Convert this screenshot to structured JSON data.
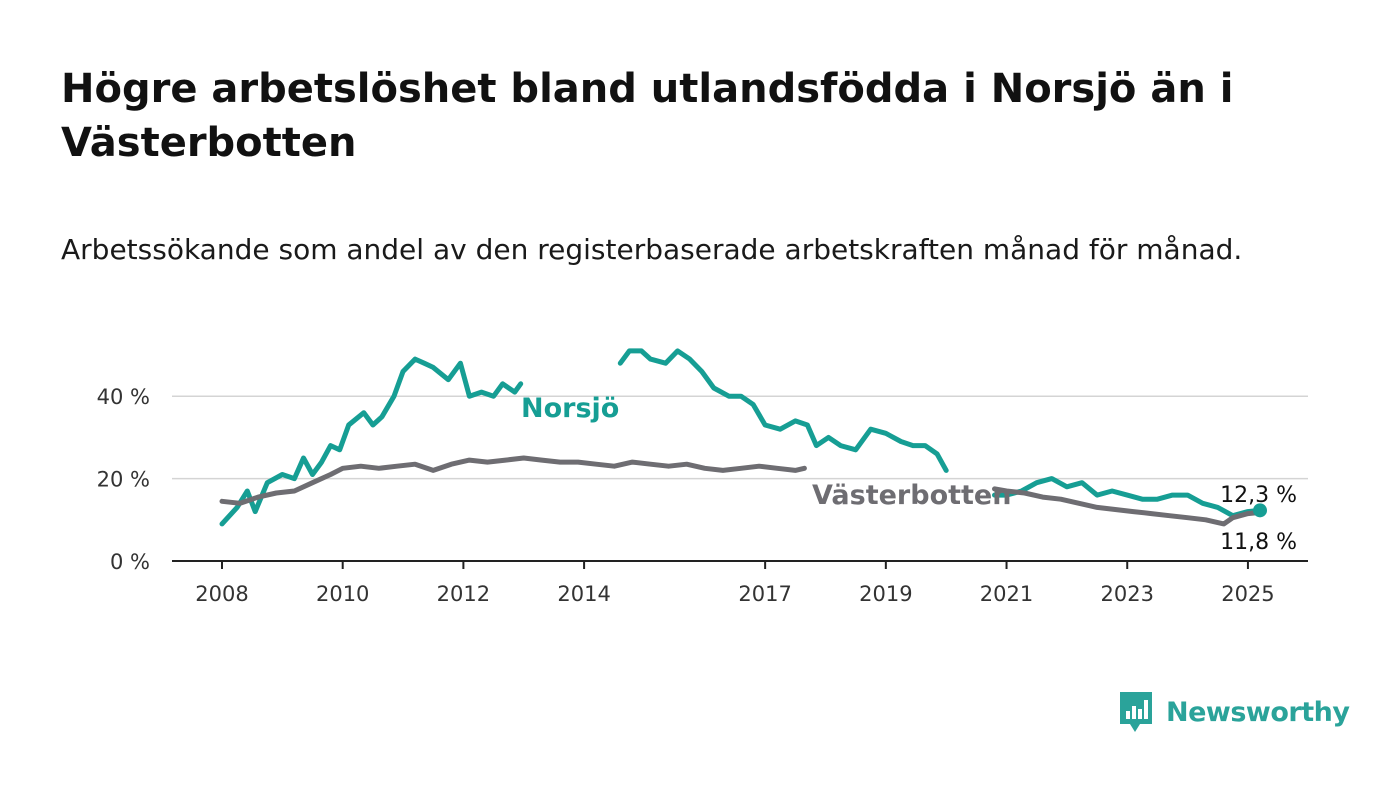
{
  "title": "Högre arbetslöshet bland utlandsfödda i Norsjö än i Västerbotten",
  "subtitle": "Arbetssökande som andel av den registerbaserade arbetskraften månad för månad.",
  "brand": {
    "name": "Newsworthy",
    "icon": "newsworthy-logo-icon",
    "color": "#2aa39a"
  },
  "chart_data": {
    "type": "line",
    "xlabel": "",
    "ylabel": "",
    "x_ticks": [
      "2008",
      "2010",
      "2012",
      "2014",
      "2017",
      "2019",
      "2021",
      "2023",
      "2025"
    ],
    "y_ticks": [
      "0 %",
      "20 %",
      "40 %"
    ],
    "xlim": [
      2008.0,
      2025.2
    ],
    "ylim": [
      0,
      50
    ],
    "grid": "horizontal",
    "series": [
      {
        "name": "Norsjö",
        "color": "#169e94",
        "end_label": "12,3 %",
        "points": [
          [
            2008.0,
            9
          ],
          [
            2008.25,
            13
          ],
          [
            2008.42,
            17
          ],
          [
            2008.55,
            12
          ],
          [
            2008.75,
            19
          ],
          [
            2009.0,
            21
          ],
          [
            2009.2,
            20
          ],
          [
            2009.35,
            25
          ],
          [
            2009.5,
            21
          ],
          [
            2009.65,
            24
          ],
          [
            2009.8,
            28
          ],
          [
            2009.95,
            27
          ],
          [
            2010.1,
            33
          ],
          [
            2010.35,
            36
          ],
          [
            2010.5,
            33
          ],
          [
            2010.65,
            35
          ],
          [
            2010.85,
            40
          ],
          [
            2011.0,
            46
          ],
          [
            2011.2,
            49
          ],
          [
            2011.35,
            48
          ],
          [
            2011.5,
            47
          ],
          [
            2011.75,
            44
          ],
          [
            2011.95,
            48
          ],
          [
            2012.1,
            40
          ],
          [
            2012.3,
            41
          ],
          [
            2012.5,
            40
          ],
          [
            2012.65,
            43
          ],
          [
            2012.85,
            41
          ],
          [
            2012.95,
            43
          ],
          [
            2014.6,
            48
          ],
          [
            2014.75,
            51
          ],
          [
            2014.95,
            51
          ],
          [
            2015.1,
            49
          ],
          [
            2015.35,
            48
          ],
          [
            2015.55,
            51
          ],
          [
            2015.75,
            49
          ],
          [
            2015.95,
            46
          ],
          [
            2016.15,
            42
          ],
          [
            2016.4,
            40
          ],
          [
            2016.6,
            40
          ],
          [
            2016.8,
            38
          ],
          [
            2017.0,
            33
          ],
          [
            2017.25,
            32
          ],
          [
            2017.5,
            34
          ],
          [
            2017.7,
            33
          ],
          [
            2017.85,
            28
          ],
          [
            2018.05,
            30
          ],
          [
            2018.25,
            28
          ],
          [
            2018.5,
            27
          ],
          [
            2018.75,
            32
          ],
          [
            2019.0,
            31
          ],
          [
            2019.25,
            29
          ],
          [
            2019.45,
            28
          ],
          [
            2019.65,
            28
          ],
          [
            2019.85,
            26
          ],
          [
            2020.0,
            22
          ],
          [
            2020.8,
            16
          ],
          [
            2021.0,
            16
          ],
          [
            2021.25,
            17
          ],
          [
            2021.5,
            19
          ],
          [
            2021.75,
            20
          ],
          [
            2022.0,
            18
          ],
          [
            2022.25,
            19
          ],
          [
            2022.5,
            16
          ],
          [
            2022.75,
            17
          ],
          [
            2023.0,
            16
          ],
          [
            2023.25,
            15
          ],
          [
            2023.5,
            15
          ],
          [
            2023.75,
            16
          ],
          [
            2024.0,
            16
          ],
          [
            2024.25,
            14
          ],
          [
            2024.5,
            13
          ],
          [
            2024.75,
            11
          ],
          [
            2025.0,
            12
          ],
          [
            2025.2,
            12.3
          ]
        ]
      },
      {
        "name": "Västerbotten",
        "color": "#6e6d72",
        "end_label": "11,8 %",
        "points": [
          [
            2008.0,
            14.5
          ],
          [
            2008.3,
            14
          ],
          [
            2008.6,
            15.5
          ],
          [
            2008.9,
            16.5
          ],
          [
            2009.2,
            17
          ],
          [
            2009.5,
            19
          ],
          [
            2009.8,
            21
          ],
          [
            2010.0,
            22.5
          ],
          [
            2010.3,
            23
          ],
          [
            2010.6,
            22.5
          ],
          [
            2010.9,
            23
          ],
          [
            2011.2,
            23.5
          ],
          [
            2011.5,
            22
          ],
          [
            2011.8,
            23.5
          ],
          [
            2012.1,
            24.5
          ],
          [
            2012.4,
            24
          ],
          [
            2012.7,
            24.5
          ],
          [
            2013.0,
            25
          ],
          [
            2013.3,
            24.5
          ],
          [
            2013.6,
            24
          ],
          [
            2013.9,
            24
          ],
          [
            2014.2,
            23.5
          ],
          [
            2014.5,
            23
          ],
          [
            2014.8,
            24
          ],
          [
            2015.1,
            23.5
          ],
          [
            2015.4,
            23
          ],
          [
            2015.7,
            23.5
          ],
          [
            2016.0,
            22.5
          ],
          [
            2016.3,
            22
          ],
          [
            2016.6,
            22.5
          ],
          [
            2016.9,
            23
          ],
          [
            2017.2,
            22.5
          ],
          [
            2017.5,
            22
          ],
          [
            2017.65,
            22.5
          ],
          [
            2020.8,
            17.5
          ],
          [
            2021.0,
            17
          ],
          [
            2021.3,
            16.5
          ],
          [
            2021.6,
            15.5
          ],
          [
            2021.9,
            15
          ],
          [
            2022.2,
            14
          ],
          [
            2022.5,
            13
          ],
          [
            2022.8,
            12.5
          ],
          [
            2023.1,
            12
          ],
          [
            2023.4,
            11.5
          ],
          [
            2023.7,
            11
          ],
          [
            2024.0,
            10.5
          ],
          [
            2024.3,
            10
          ],
          [
            2024.6,
            9
          ],
          [
            2024.75,
            10.5
          ],
          [
            2025.0,
            11.5
          ],
          [
            2025.2,
            11.8
          ]
        ]
      }
    ]
  }
}
